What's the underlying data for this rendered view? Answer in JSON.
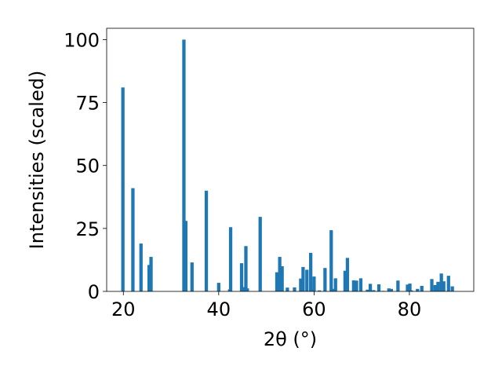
{
  "chart_data": {
    "type": "bar",
    "xlabel": "2θ (°)",
    "ylabel": "Intensities (scaled)",
    "xlim": [
      16.5,
      93.5
    ],
    "ylim": [
      0,
      104.5
    ],
    "xticks": [
      20,
      40,
      60,
      80
    ],
    "yticks": [
      0,
      25,
      50,
      75,
      100
    ],
    "bar_color": "#1f77b4",
    "x": [
      19.9,
      22.0,
      23.7,
      25.4,
      25.8,
      32.7,
      33.1,
      34.4,
      37.4,
      40.0,
      42.3,
      42.5,
      44.8,
      45.2,
      45.7,
      46.0,
      48.7,
      52.2,
      52.8,
      53.3,
      54.4,
      55.9,
      57.2,
      57.7,
      58.5,
      59.3,
      59.6,
      60.0,
      61.1,
      62.3,
      63.6,
      64.0,
      64.5,
      66.5,
      67.0,
      68.3,
      68.9,
      69.8,
      71.2,
      71.8,
      72.5,
      73.6,
      74.5,
      75.7,
      76.2,
      77.6,
      79.6,
      80.1,
      80.4,
      81.7,
      82.6,
      84.7,
      85.4,
      86.0,
      86.7,
      87.2,
      88.2,
      89.0
    ],
    "values": [
      81,
      41,
      19,
      10.5,
      13.7,
      100,
      28,
      11.5,
      40,
      3.4,
      0.8,
      25.5,
      11.2,
      1.7,
      18,
      1.2,
      29.6,
      7.6,
      13.7,
      10.0,
      1.5,
      1.6,
      5.1,
      9.7,
      8.6,
      15.3,
      1.0,
      5.9,
      0.4,
      9.3,
      24.3,
      1.0,
      5.2,
      8.2,
      13.3,
      4.4,
      4.3,
      5.2,
      0.7,
      3.0,
      0.5,
      2.8,
      0.2,
      1.2,
      1.0,
      4.3,
      2.7,
      3.1,
      0.4,
      1.0,
      2.2,
      4.9,
      2.5,
      3.8,
      7.1,
      4.0,
      6.2,
      2.0
    ]
  }
}
